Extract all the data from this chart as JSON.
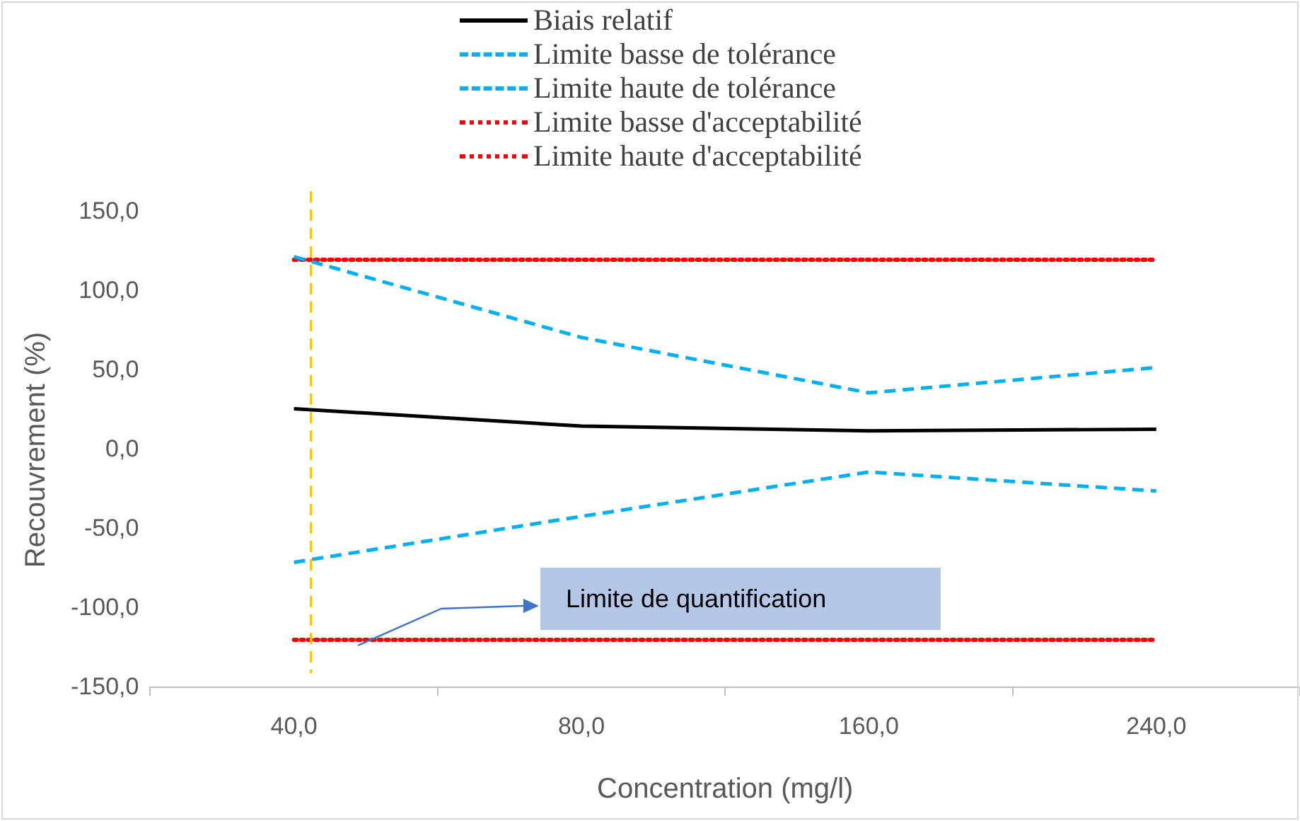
{
  "chart_data": {
    "type": "line",
    "xlabel": "Concentration (mg/l)",
    "ylabel": "Recouvrement (%)",
    "categories": [
      "40,0",
      "80,0",
      "160,0",
      "240,0"
    ],
    "series": [
      {
        "name": "Biais relatif",
        "color": "#000000",
        "line_style": "solid",
        "values": [
          26,
          15,
          12,
          13
        ]
      },
      {
        "name": "Limite basse de tolérance",
        "color": "#00b0f0",
        "line_style": "dashed",
        "values": [
          -71,
          -42,
          -14,
          -26
        ]
      },
      {
        "name": "Limite haute de tolérance",
        "color": "#00b0f0",
        "line_style": "dashed",
        "values": [
          122,
          71,
          36,
          52
        ]
      },
      {
        "name": "Limite basse d'acceptabilité",
        "color": "#ff0000",
        "line_style": "dotted",
        "values": [
          -120,
          -120,
          -120,
          -120
        ]
      },
      {
        "name": "Limite haute d'acceptabilité",
        "color": "#ff0000",
        "line_style": "dotted",
        "values": [
          120,
          120,
          120,
          120
        ]
      }
    ],
    "ylim": [
      -150,
      150
    ],
    "yticks": [
      {
        "value": -150,
        "label": "-150,0"
      },
      {
        "value": -100,
        "label": "-100,0"
      },
      {
        "value": -50,
        "label": "-50,0"
      },
      {
        "value": 0,
        "label": "0,0"
      },
      {
        "value": 50,
        "label": "50,0"
      },
      {
        "value": 100,
        "label": "100,0"
      },
      {
        "value": 150,
        "label": "150,0"
      }
    ],
    "ref_lines": [
      {
        "axis": "x",
        "value": "40,0",
        "color": "#ffc000",
        "line_style": "dashed"
      }
    ],
    "annotations": [
      "Limite de quantification"
    ],
    "grid": false,
    "legend": "top",
    "marker": "none"
  }
}
